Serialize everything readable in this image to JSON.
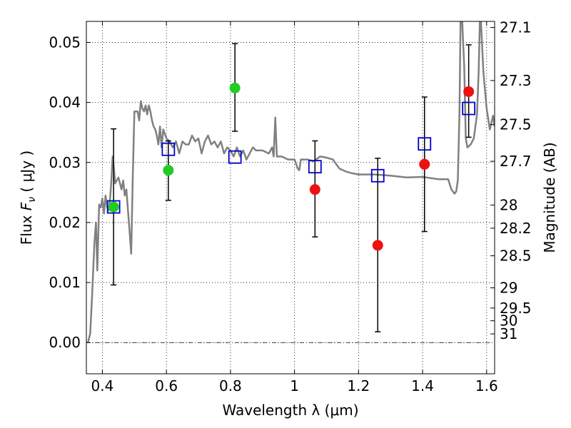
{
  "chart_data": {
    "type": "scatter",
    "xlabel": "Wavelength  λ (μm)",
    "ylabel": "Flux  F_ν  ( μJy )",
    "ylabel_parts": {
      "pre": "Flux  ",
      "sym": "F",
      "sub": "ν",
      "post": "  ( μJy )"
    },
    "y2label": "Magnitude (AB)",
    "xlim": [
      0.35,
      1.625
    ],
    "ylim": [
      -0.0052,
      0.0535
    ],
    "grid": true,
    "x_ticks": [
      0.4,
      0.6,
      0.8,
      1.0,
      1.2,
      1.4,
      1.6
    ],
    "x_tick_labels": [
      "0.4",
      "0.6",
      "0.8",
      "1",
      "1.2",
      "1.4",
      "1.6"
    ],
    "y_ticks": [
      0.0,
      0.01,
      0.02,
      0.03,
      0.04,
      0.05
    ],
    "y_tick_labels": [
      "0.00",
      "0.01",
      "0.02",
      "0.03",
      "0.04",
      "0.05"
    ],
    "mag_ticks": [
      27.1,
      27.3,
      27.5,
      27.7,
      28,
      28.2,
      28.5,
      29,
      29.5,
      30,
      31
    ],
    "mag_tick_labels": [
      "27.1",
      "27.3",
      "27.5",
      "27.7",
      "28",
      "28.2",
      "28.5",
      "29",
      "29.5",
      "30",
      "31"
    ],
    "colors": {
      "model": "#808080",
      "green": "#22cc22",
      "red": "#ee1111",
      "square": "#0000cc"
    },
    "model_sed": [
      [
        0.355,
        0.0
      ],
      [
        0.362,
        0.0015
      ],
      [
        0.368,
        0.008
      ],
      [
        0.375,
        0.0165
      ],
      [
        0.38,
        0.02
      ],
      [
        0.384,
        0.012
      ],
      [
        0.39,
        0.023
      ],
      [
        0.395,
        0.0225
      ],
      [
        0.4,
        0.024
      ],
      [
        0.405,
        0.0215
      ],
      [
        0.41,
        0.0245
      ],
      [
        0.415,
        0.0225
      ],
      [
        0.42,
        0.022
      ],
      [
        0.425,
        0.0245
      ],
      [
        0.428,
        0.027
      ],
      [
        0.432,
        0.031
      ],
      [
        0.436,
        0.029
      ],
      [
        0.44,
        0.0265
      ],
      [
        0.445,
        0.027
      ],
      [
        0.45,
        0.0275
      ],
      [
        0.455,
        0.0265
      ],
      [
        0.46,
        0.0255
      ],
      [
        0.465,
        0.027
      ],
      [
        0.47,
        0.0245
      ],
      [
        0.475,
        0.0255
      ],
      [
        0.48,
        0.022
      ],
      [
        0.485,
        0.0185
      ],
      [
        0.49,
        0.0148
      ],
      [
        0.495,
        0.028
      ],
      [
        0.5,
        0.0385
      ],
      [
        0.51,
        0.0385
      ],
      [
        0.515,
        0.037
      ],
      [
        0.52,
        0.0402
      ],
      [
        0.525,
        0.039
      ],
      [
        0.53,
        0.0385
      ],
      [
        0.535,
        0.0395
      ],
      [
        0.54,
        0.038
      ],
      [
        0.545,
        0.0395
      ],
      [
        0.55,
        0.0385
      ],
      [
        0.555,
        0.037
      ],
      [
        0.56,
        0.036
      ],
      [
        0.565,
        0.0355
      ],
      [
        0.57,
        0.0345
      ],
      [
        0.575,
        0.033
      ],
      [
        0.58,
        0.036
      ],
      [
        0.585,
        0.0325
      ],
      [
        0.59,
        0.0355
      ],
      [
        0.6,
        0.034
      ],
      [
        0.61,
        0.0335
      ],
      [
        0.62,
        0.0325
      ],
      [
        0.63,
        0.0335
      ],
      [
        0.64,
        0.0315
      ],
      [
        0.65,
        0.0335
      ],
      [
        0.66,
        0.033
      ],
      [
        0.67,
        0.033
      ],
      [
        0.68,
        0.0345
      ],
      [
        0.69,
        0.0335
      ],
      [
        0.7,
        0.034
      ],
      [
        0.71,
        0.0315
      ],
      [
        0.72,
        0.0335
      ],
      [
        0.73,
        0.0345
      ],
      [
        0.74,
        0.033
      ],
      [
        0.75,
        0.0335
      ],
      [
        0.76,
        0.0325
      ],
      [
        0.77,
        0.0335
      ],
      [
        0.78,
        0.0315
      ],
      [
        0.79,
        0.0325
      ],
      [
        0.8,
        0.032
      ],
      [
        0.81,
        0.031
      ],
      [
        0.82,
        0.0325
      ],
      [
        0.83,
        0.031
      ],
      [
        0.84,
        0.032
      ],
      [
        0.85,
        0.0305
      ],
      [
        0.86,
        0.0315
      ],
      [
        0.87,
        0.0325
      ],
      [
        0.88,
        0.032
      ],
      [
        0.9,
        0.032
      ],
      [
        0.92,
        0.0315
      ],
      [
        0.93,
        0.0325
      ],
      [
        0.935,
        0.031
      ],
      [
        0.94,
        0.0375
      ],
      [
        0.945,
        0.031
      ],
      [
        0.96,
        0.031
      ],
      [
        0.98,
        0.0305
      ],
      [
        1.0,
        0.0305
      ],
      [
        1.01,
        0.029
      ],
      [
        1.015,
        0.0287
      ],
      [
        1.02,
        0.0305
      ],
      [
        1.04,
        0.0305
      ],
      [
        1.06,
        0.0302
      ],
      [
        1.08,
        0.031
      ],
      [
        1.1,
        0.0308
      ],
      [
        1.12,
        0.0305
      ],
      [
        1.14,
        0.029
      ],
      [
        1.16,
        0.0285
      ],
      [
        1.18,
        0.0282
      ],
      [
        1.2,
        0.028
      ],
      [
        1.25,
        0.028
      ],
      [
        1.3,
        0.0278
      ],
      [
        1.35,
        0.0275
      ],
      [
        1.4,
        0.0276
      ],
      [
        1.45,
        0.0272
      ],
      [
        1.48,
        0.0272
      ],
      [
        1.49,
        0.0255
      ],
      [
        1.5,
        0.0248
      ],
      [
        1.505,
        0.0252
      ],
      [
        1.51,
        0.027
      ],
      [
        1.515,
        0.038
      ],
      [
        1.52,
        0.06
      ],
      [
        1.525,
        0.052
      ],
      [
        1.53,
        0.046
      ],
      [
        1.535,
        0.034
      ],
      [
        1.54,
        0.0325
      ],
      [
        1.55,
        0.033
      ],
      [
        1.56,
        0.034
      ],
      [
        1.57,
        0.038
      ],
      [
        1.575,
        0.045
      ],
      [
        1.58,
        0.056
      ],
      [
        1.59,
        0.045
      ],
      [
        1.6,
        0.039
      ],
      [
        1.61,
        0.0355
      ],
      [
        1.62,
        0.0378
      ],
      [
        1.625,
        0.036
      ]
    ],
    "model_photometry_squares": [
      {
        "x": 0.435,
        "y": 0.0226
      },
      {
        "x": 0.606,
        "y": 0.0322
      },
      {
        "x": 0.814,
        "y": 0.0309
      },
      {
        "x": 1.064,
        "y": 0.0293
      },
      {
        "x": 1.26,
        "y": 0.0278
      },
      {
        "x": 1.406,
        "y": 0.0331
      },
      {
        "x": 1.544,
        "y": 0.039
      }
    ],
    "observed_points": [
      {
        "x": 0.435,
        "y": 0.0226,
        "err_low": 0.0096,
        "err_high": 0.0356,
        "color": "green"
      },
      {
        "x": 0.606,
        "y": 0.0287,
        "err_low": 0.0237,
        "err_high": 0.0336,
        "color": "green"
      },
      {
        "x": 0.814,
        "y": 0.0424,
        "err_low": 0.0352,
        "err_high": 0.0498,
        "color": "green"
      },
      {
        "x": 1.064,
        "y": 0.0255,
        "err_low": 0.0176,
        "err_high": 0.0336,
        "color": "red"
      },
      {
        "x": 1.26,
        "y": 0.0162,
        "err_low": 0.0018,
        "err_high": 0.0307,
        "color": "red"
      },
      {
        "x": 1.406,
        "y": 0.0297,
        "err_low": 0.0185,
        "err_high": 0.0409,
        "color": "red"
      },
      {
        "x": 1.544,
        "y": 0.0418,
        "err_low": 0.0342,
        "err_high": 0.0496,
        "color": "red"
      }
    ],
    "zero_line": true
  }
}
